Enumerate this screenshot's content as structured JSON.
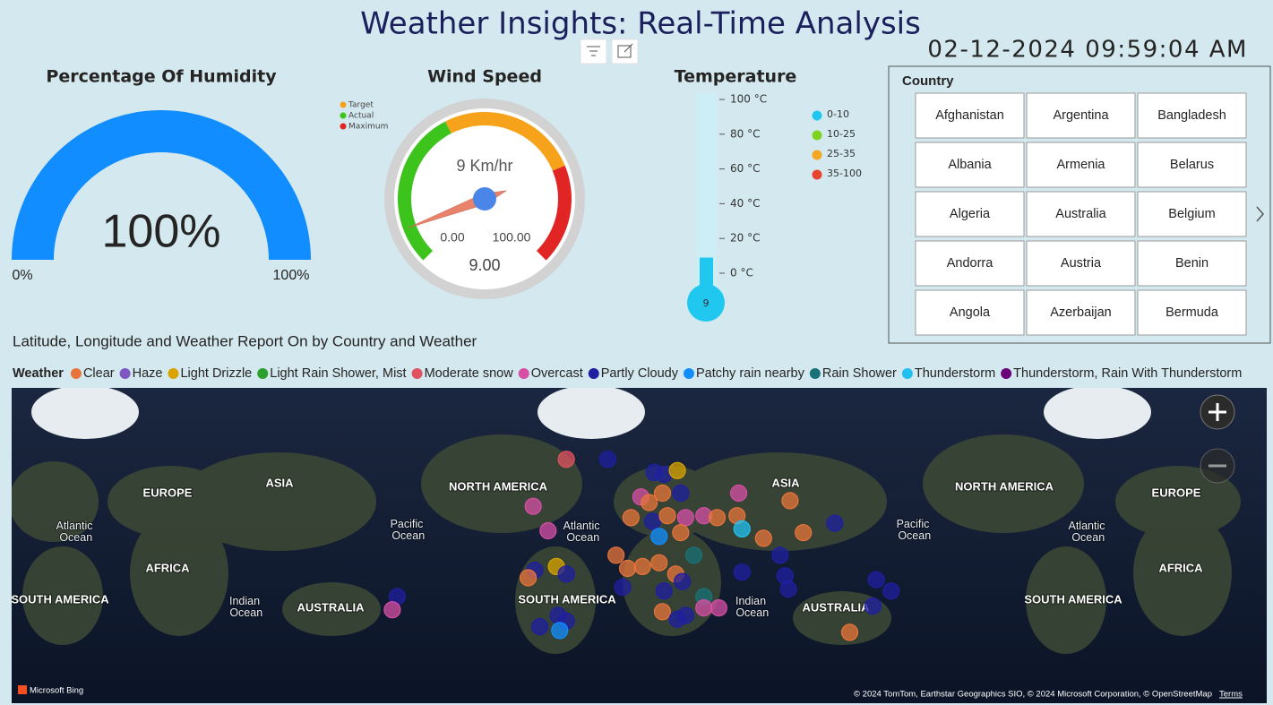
{
  "header": {
    "title": "Weather Insights: Real-Time Analysis",
    "datetime": "02-12-2024 09:59:04 AM"
  },
  "humidity": {
    "type": "gauge",
    "title": "Percentage Of Humidity",
    "value": 100,
    "value_label": "100%",
    "min": {
      "value": 0,
      "label": "0%"
    },
    "max": {
      "value": 100,
      "label": "100%"
    },
    "color": "#118dff"
  },
  "wind_speed": {
    "type": "gauge",
    "title": "Wind Speed",
    "value": 9,
    "value_label": "9 Km/hr",
    "readout": "9.00",
    "min": {
      "value": 0,
      "label": "0.00"
    },
    "max": {
      "value": 100,
      "label": "100.00"
    },
    "needle_color": "#e8826b",
    "bands": [
      {
        "name": "Target",
        "color": "#f7a21b",
        "from": 40,
        "to": 75
      },
      {
        "name": "Actual",
        "color": "#3cc41c",
        "from": 0,
        "to": 40
      },
      {
        "name": "Maximum",
        "color": "#e12424",
        "from": 75,
        "to": 100
      }
    ]
  },
  "temperature": {
    "type": "thermometer",
    "title": "Temperature",
    "value": 9,
    "fill_color": "#20c8f0",
    "ylim": [
      0,
      100
    ],
    "yticks": [
      {
        "value": 0,
        "label": "0 °C"
      },
      {
        "value": 20,
        "label": "20 °C"
      },
      {
        "value": 40,
        "label": "40 °C"
      },
      {
        "value": 60,
        "label": "60 °C"
      },
      {
        "value": 80,
        "label": "80 °C"
      },
      {
        "value": 100,
        "label": "100 °C"
      }
    ],
    "ranges": [
      {
        "label": "0-10",
        "color": "#20c8f0"
      },
      {
        "label": "10-25",
        "color": "#7ed321"
      },
      {
        "label": "25-35",
        "color": "#f5a623"
      },
      {
        "label": "35-100",
        "color": "#e8432e"
      }
    ]
  },
  "country_slicer": {
    "title": "Country",
    "items": [
      "Afghanistan",
      "Albania",
      "Algeria",
      "Andorra",
      "Angola",
      "Argentina",
      "Armenia",
      "Australia",
      "Austria",
      "Azerbaijan",
      "Bangladesh",
      "Belarus",
      "Belgium",
      "Benin",
      "Bermuda"
    ]
  },
  "map": {
    "type": "map",
    "title": "Latitude, Longitude and Weather Report On by Country and Weather",
    "legend_title": "Weather",
    "categories": [
      {
        "name": "Clear",
        "color": "#e8743b"
      },
      {
        "name": "Haze",
        "color": "#7e57c2"
      },
      {
        "name": "Light Drizzle",
        "color": "#d9a400"
      },
      {
        "name": "Light Rain Shower, Mist",
        "color": "#2ca02c"
      },
      {
        "name": "Moderate snow",
        "color": "#e05260"
      },
      {
        "name": "Overcast",
        "color": "#d64fa5"
      },
      {
        "name": "Partly Cloudy",
        "color": "#1f1fa0"
      },
      {
        "name": "Patchy rain nearby",
        "color": "#118dff"
      },
      {
        "name": "Rain Shower",
        "color": "#197278"
      },
      {
        "name": "Thunderstorm",
        "color": "#20c0f0"
      },
      {
        "name": "Thunderstorm, Rain With Thunderstorm",
        "color": "#6b007b"
      }
    ],
    "labels": [
      "EUROPE",
      "ASIA",
      "NORTH AMERICA",
      "AFRICA",
      "SOUTH AMERICA",
      "AUSTRALIA",
      "SOUTH AMERICA",
      "ASIA",
      "AUSTRALIA",
      "NORTH AMERICA",
      "EUROPE",
      "AFRICA",
      "SOUTH AMERICA",
      "Atlantic Ocean",
      "Pacific Ocean",
      "Atlantic Ocean",
      "Indian Ocean",
      "Indian Ocean",
      "Pacific Ocean",
      "Atlantic Ocean"
    ],
    "points": [
      {
        "lat": 63,
        "lon": -41,
        "weather": "Moderate snow"
      },
      {
        "lat": 63,
        "lon": -16,
        "weather": "Partly Cloudy"
      },
      {
        "lat": 56,
        "lon": 12,
        "weather": "Partly Cloudy"
      },
      {
        "lat": 55,
        "lon": 18,
        "weather": "Partly Cloudy"
      },
      {
        "lat": 57,
        "lon": 26,
        "weather": "Light Drizzle"
      },
      {
        "lat": 43,
        "lon": 4,
        "weather": "Overcast"
      },
      {
        "lat": 40,
        "lon": 9,
        "weather": "Clear"
      },
      {
        "lat": 45,
        "lon": 17,
        "weather": "Clear"
      },
      {
        "lat": 45,
        "lon": 28,
        "weather": "Partly Cloudy"
      },
      {
        "lat": 32,
        "lon": -2,
        "weather": "Clear"
      },
      {
        "lat": 30,
        "lon": 11,
        "weather": "Partly Cloudy"
      },
      {
        "lat": 33,
        "lon": 20,
        "weather": "Clear"
      },
      {
        "lat": 32,
        "lon": 31,
        "weather": "Overcast"
      },
      {
        "lat": 33,
        "lon": 42,
        "weather": "Overcast"
      },
      {
        "lat": 32,
        "lon": 50,
        "weather": "Clear"
      },
      {
        "lat": 45,
        "lon": 63,
        "weather": "Overcast"
      },
      {
        "lat": 33,
        "lon": 62,
        "weather": "Clear"
      },
      {
        "lat": 26,
        "lon": 65,
        "weather": "Thunderstorm"
      },
      {
        "lat": 21,
        "lon": 78,
        "weather": "Clear"
      },
      {
        "lat": 41,
        "lon": 94,
        "weather": "Clear"
      },
      {
        "lat": 24,
        "lon": 102,
        "weather": "Clear"
      },
      {
        "lat": 29,
        "lon": 121,
        "weather": "Partly Cloudy"
      },
      {
        "lat": 12,
        "lon": 88,
        "weather": "Partly Cloudy"
      },
      {
        "lat": 1,
        "lon": 91,
        "weather": "Partly Cloudy"
      },
      {
        "lat": -6,
        "lon": 93,
        "weather": "Partly Cloudy"
      },
      {
        "lat": 3,
        "lon": 65,
        "weather": "Partly Cloudy"
      },
      {
        "lat": 38,
        "lon": -61,
        "weather": "Overcast"
      },
      {
        "lat": 25,
        "lon": -52,
        "weather": "Overcast"
      },
      {
        "lat": 12,
        "lon": -11,
        "weather": "Clear"
      },
      {
        "lat": 5,
        "lon": -4,
        "weather": "Clear"
      },
      {
        "lat": 6,
        "lon": 5,
        "weather": "Clear"
      },
      {
        "lat": 8,
        "lon": 15,
        "weather": "Clear"
      },
      {
        "lat": 2,
        "lon": 25,
        "weather": "Clear"
      },
      {
        "lat": 12,
        "lon": 36,
        "weather": "Rain Shower"
      },
      {
        "lat": -2,
        "lon": 29,
        "weather": "Partly Cloudy"
      },
      {
        "lat": -10,
        "lon": 42,
        "weather": "Rain Shower"
      },
      {
        "lat": -7,
        "lon": 18,
        "weather": "Partly Cloudy"
      },
      {
        "lat": -18,
        "lon": 17,
        "weather": "Clear"
      },
      {
        "lat": -20,
        "lon": 31,
        "weather": "Partly Cloudy"
      },
      {
        "lat": -22,
        "lon": 26,
        "weather": "Partly Cloudy"
      },
      {
        "lat": -16,
        "lon": 42,
        "weather": "Overcast"
      },
      {
        "lat": -16,
        "lon": 51,
        "weather": "Overcast"
      },
      {
        "lat": 4,
        "lon": -60,
        "weather": "Partly Cloudy"
      },
      {
        "lat": 0,
        "lon": -64,
        "weather": "Clear"
      },
      {
        "lat": 6,
        "lon": -47,
        "weather": "Light Drizzle"
      },
      {
        "lat": 2,
        "lon": -41,
        "weather": "Partly Cloudy"
      },
      {
        "lat": -26,
        "lon": -57,
        "weather": "Partly Cloudy"
      },
      {
        "lat": -20,
        "lon": -46,
        "weather": "Partly Cloudy"
      },
      {
        "lat": -23,
        "lon": -41,
        "weather": "Partly Cloudy"
      },
      {
        "lat": -28,
        "lon": -45,
        "weather": "Patchy rain nearby"
      },
      {
        "lat": -1,
        "lon": 146,
        "weather": "Partly Cloudy"
      },
      {
        "lat": -7,
        "lon": 155,
        "weather": "Partly Cloudy"
      },
      {
        "lat": -15,
        "lon": 144,
        "weather": "Partly Cloudy"
      },
      {
        "lat": -29,
        "lon": 130,
        "weather": "Clear"
      },
      {
        "lat": -10,
        "lon": -143,
        "weather": "Partly Cloudy"
      },
      {
        "lat": -17,
        "lon": -146,
        "weather": "Overcast"
      },
      {
        "lat": 22,
        "lon": 15,
        "weather": "Patchy rain nearby"
      },
      {
        "lat": 24,
        "lon": 28,
        "weather": "Clear"
      },
      {
        "lat": -5,
        "lon": -7,
        "weather": "Partly Cloudy"
      }
    ],
    "attribution": "© 2024 TomTom, Earthstar Geographics SIO, © 2024 Microsoft Corporation, © OpenStreetMap",
    "terms": "Terms",
    "provider": "Microsoft Bing"
  }
}
